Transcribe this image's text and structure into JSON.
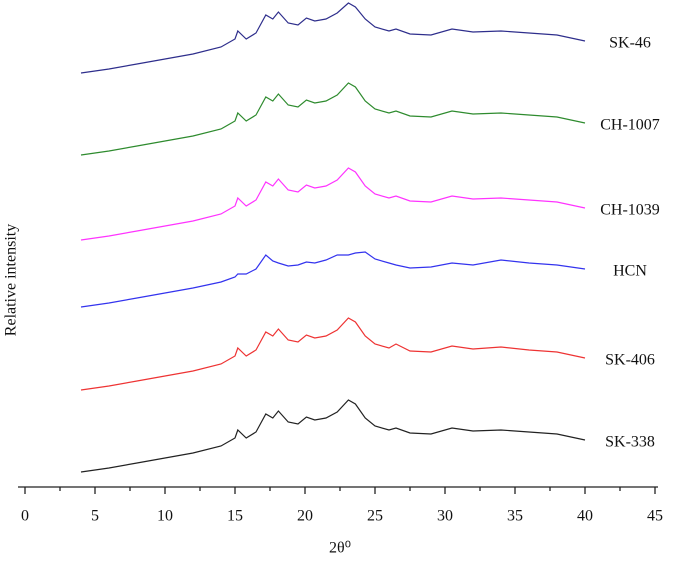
{
  "chart_data": {
    "type": "line",
    "x_label": "2θ⁰",
    "y_label": "Relative intensity",
    "xlim": [
      0,
      45
    ],
    "xticks": [
      0,
      5,
      10,
      15,
      20,
      25,
      30,
      35,
      40,
      45
    ],
    "xminorticks": [
      2.5,
      7.5,
      12.5,
      17.5,
      22.5,
      27.5,
      32.5,
      37.5,
      42.5
    ],
    "ylim": [
      0,
      487
    ],
    "x": [
      4,
      6,
      8,
      10,
      12,
      14,
      15,
      15.2,
      15.8,
      16.5,
      17.2,
      17.7,
      18.1,
      18.8,
      19.5,
      20.1,
      20.7,
      21.5,
      22.3,
      23.1,
      23.6,
      24.3,
      25,
      26,
      26.5,
      27.5,
      29,
      30.5,
      32,
      34,
      36,
      38,
      40
    ],
    "series": [
      {
        "name": "SK-46",
        "color": "#2e2e8c",
        "values": [
          414,
          418,
          423,
          428,
          433,
          440,
          448,
          456,
          448,
          454,
          472,
          468,
          475,
          464,
          462,
          469,
          466,
          468,
          474,
          484,
          480,
          468,
          460,
          456,
          458,
          453,
          452,
          458,
          455,
          456,
          454,
          452,
          446
        ]
      },
      {
        "name": "CH-1007",
        "color": "#2e8b2e",
        "values": [
          332,
          336,
          341,
          346,
          351,
          358,
          366,
          374,
          366,
          372,
          390,
          386,
          393,
          382,
          380,
          387,
          384,
          386,
          392,
          404,
          400,
          386,
          378,
          374,
          376,
          371,
          370,
          376,
          373,
          374,
          372,
          370,
          364
        ]
      },
      {
        "name": "CH-1039",
        "color": "#ff33ff",
        "values": [
          247,
          251,
          256,
          261,
          266,
          273,
          281,
          289,
          281,
          287,
          305,
          301,
          308,
          297,
          295,
          302,
          299,
          301,
          307,
          319,
          315,
          301,
          293,
          289,
          291,
          286,
          285,
          291,
          288,
          289,
          287,
          285,
          279
        ]
      },
      {
        "name": "HCN",
        "color": "#3333ee",
        "values": [
          180,
          184,
          189,
          194,
          199,
          205,
          210,
          213,
          213,
          218,
          232,
          226,
          224,
          221,
          222,
          225,
          224,
          227,
          232,
          232,
          234,
          235,
          228,
          224,
          222,
          219,
          220,
          224,
          222,
          227,
          224,
          222,
          218
        ]
      },
      {
        "name": "SK-406",
        "color": "#ee3333",
        "values": [
          97,
          101,
          106,
          111,
          116,
          123,
          131,
          139,
          131,
          137,
          155,
          151,
          158,
          147,
          145,
          152,
          149,
          151,
          157,
          169,
          165,
          151,
          143,
          139,
          143,
          136,
          135,
          141,
          138,
          140,
          137,
          135,
          129
        ]
      },
      {
        "name": "SK-338",
        "color": "#222222",
        "values": [
          15,
          19,
          24,
          29,
          34,
          41,
          49,
          57,
          49,
          55,
          73,
          69,
          76,
          65,
          63,
          70,
          67,
          69,
          75,
          87,
          83,
          69,
          61,
          57,
          59,
          54,
          53,
          59,
          56,
          57,
          55,
          53,
          47
        ]
      }
    ]
  }
}
